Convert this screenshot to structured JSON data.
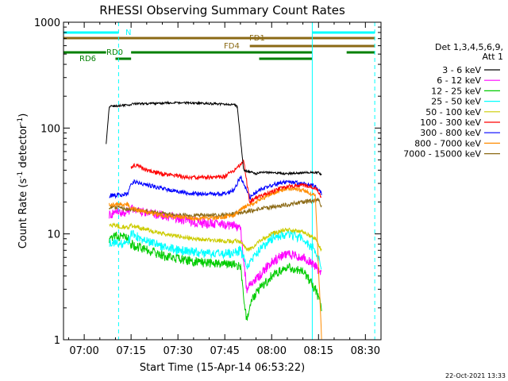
{
  "chart_data": {
    "type": "line",
    "title": "RHESSI Observing Summary Count Rates",
    "xlabel": "Start Time (15-Apr-14 06:53:22)",
    "ylabel_main": "Count Rate (s",
    "ylabel_sup1": "-1",
    "ylabel_mid": " detector",
    "ylabel_sup2": "-1",
    "ylabel_end": ")",
    "yscale": "log",
    "ylim": [
      1,
      1000
    ],
    "xlim": [
      "06:53:22",
      "08:35:00"
    ],
    "xticks": [
      "07:00",
      "07:15",
      "07:30",
      "07:45",
      "08:00",
      "08:15",
      "08:30"
    ],
    "yticks": [
      "1",
      "10",
      "100",
      "1000"
    ],
    "legend_header": [
      "Det 1,3,4,5,6,9,",
      "Att 1"
    ],
    "legend_position": "right",
    "series": [
      {
        "name": "3 - 6 keV",
        "color": "#000000",
        "x": [
          "07:07",
          "07:08",
          "07:10",
          "07:14",
          "07:15",
          "07:16",
          "07:20",
          "07:25",
          "07:30",
          "07:35",
          "07:40",
          "07:45",
          "07:48",
          "07:49",
          "07:51",
          "07:54",
          "07:55",
          "07:56",
          "08:00",
          "08:05",
          "08:10",
          "08:15",
          "08:16"
        ],
        "y": [
          70,
          160,
          162,
          165,
          168,
          170,
          170,
          172,
          173,
          172,
          170,
          168,
          166,
          160,
          40,
          38,
          37,
          38,
          38,
          37,
          38,
          38,
          36
        ]
      },
      {
        "name": "6 - 12 keV",
        "color": "#ff00ff",
        "x": [
          "07:08",
          "07:10",
          "07:14",
          "07:15",
          "07:20",
          "07:25",
          "07:30",
          "07:35",
          "07:40",
          "07:45",
          "07:48",
          "07:50",
          "07:52",
          "07:54",
          "07:56",
          "08:00",
          "08:05",
          "08:10",
          "08:14",
          "08:16"
        ],
        "y": [
          15,
          16,
          16,
          17,
          16,
          15,
          14,
          13,
          12.5,
          12,
          12,
          11,
          3,
          3.5,
          4,
          5.5,
          6.5,
          6,
          5,
          4
        ]
      },
      {
        "name": "12 - 25 keV",
        "color": "#00cc00",
        "x": [
          "07:08",
          "07:10",
          "07:14",
          "07:15",
          "07:20",
          "07:25",
          "07:30",
          "07:35",
          "07:40",
          "07:45",
          "07:48",
          "07:50",
          "07:52",
          "07:54",
          "07:56",
          "08:00",
          "08:05",
          "08:10",
          "08:14",
          "08:16"
        ],
        "y": [
          9,
          9.5,
          9,
          8,
          7,
          6.2,
          5.8,
          5.5,
          5.3,
          5.2,
          5.2,
          5,
          1.5,
          2.5,
          3,
          4,
          4.8,
          4.5,
          3,
          2
        ]
      },
      {
        "name": "25 - 50 keV",
        "color": "#00ffff",
        "x": [
          "07:08",
          "07:10",
          "07:14",
          "07:15",
          "07:20",
          "07:25",
          "07:30",
          "07:35",
          "07:40",
          "07:45",
          "07:48",
          "07:50",
          "07:52",
          "07:54",
          "07:56",
          "08:00",
          "08:05",
          "08:10",
          "08:14",
          "08:16"
        ],
        "y": [
          8,
          8.5,
          8,
          10,
          8.5,
          7.5,
          7,
          6.8,
          6.5,
          6.5,
          6.6,
          7,
          5,
          6,
          7,
          9,
          10,
          9,
          7,
          5
        ]
      },
      {
        "name": "50 - 100 keV",
        "color": "#cccc00",
        "x": [
          "07:08",
          "07:10",
          "07:14",
          "07:15",
          "07:20",
          "07:25",
          "07:30",
          "07:35",
          "07:40",
          "07:45",
          "07:48",
          "07:50",
          "07:52",
          "07:54",
          "07:56",
          "08:00",
          "08:05",
          "08:10",
          "08:14",
          "08:16"
        ],
        "y": [
          12,
          12,
          11.5,
          12,
          11,
          10,
          9.5,
          9,
          8.8,
          8.5,
          8.5,
          8.5,
          7,
          7.5,
          8.5,
          10,
          11,
          10.5,
          9,
          7
        ]
      },
      {
        "name": "100 - 300 keV",
        "color": "#ff0000",
        "x": [
          "07:15",
          "07:16",
          "07:20",
          "07:25",
          "07:30",
          "07:35",
          "07:40",
          "07:45",
          "07:48",
          "07:50",
          "07:51",
          "07:53",
          "07:55",
          "08:00",
          "08:05",
          "08:10",
          "08:14",
          "08:16"
        ],
        "y": [
          42,
          45,
          40,
          37,
          35,
          34,
          34,
          35,
          40,
          45,
          50,
          20,
          22,
          25,
          28,
          29,
          27,
          22
        ]
      },
      {
        "name": "300 - 800 keV",
        "color": "#0000ff",
        "x": [
          "07:08",
          "07:10",
          "07:14",
          "07:15",
          "07:16",
          "07:20",
          "07:25",
          "07:30",
          "07:35",
          "07:40",
          "07:45",
          "07:48",
          "07:50",
          "07:53",
          "07:55",
          "08:00",
          "08:05",
          "08:10",
          "08:14",
          "08:16"
        ],
        "y": [
          23,
          23,
          24,
          30,
          31,
          29,
          27,
          25,
          24,
          24,
          24,
          26,
          35,
          22,
          25,
          29,
          31,
          30,
          28,
          24
        ]
      },
      {
        "name": "800 - 7000 keV",
        "color": "#ff8c00",
        "x": [
          "07:08",
          "07:10",
          "07:14",
          "07:15",
          "07:20",
          "07:25",
          "07:30",
          "07:35",
          "07:40",
          "07:45",
          "07:48",
          "07:50",
          "07:53",
          "07:55",
          "08:00",
          "08:05",
          "08:10",
          "08:14",
          "08:16"
        ],
        "y": [
          19,
          19,
          19,
          17.5,
          16,
          15,
          14.5,
          14,
          14,
          14.5,
          15,
          17,
          19,
          20,
          24,
          27,
          26,
          23,
          1
        ]
      },
      {
        "name": "7000 - 15000 keV",
        "color": "#8b6914",
        "x": [
          "07:08",
          "07:15",
          "07:30",
          "07:45",
          "08:00",
          "08:15",
          "08:16"
        ],
        "y": [
          18,
          17,
          15,
          15,
          18,
          21,
          18
        ]
      }
    ],
    "annotations": {
      "bars": [
        {
          "label": "N",
          "color": "#00ffff",
          "segments": [
            [
              "06:53:22",
              "07:11"
            ],
            [
              "08:13",
              "08:33"
            ]
          ]
        },
        {
          "label": "FD1",
          "color": "#8b6914",
          "segments": [
            [
              "06:53:22",
              "08:33"
            ]
          ]
        },
        {
          "label": "FD4",
          "color": "#8b6914",
          "segments": [
            [
              "07:53",
              "08:33"
            ]
          ]
        },
        {
          "label": "RD0",
          "color": "#008000",
          "segments": [
            [
              "06:53:22",
              "07:07"
            ],
            [
              "07:15",
              "08:13"
            ],
            [
              "08:24",
              "08:33"
            ]
          ]
        },
        {
          "label": "RD6",
          "color": "#008000",
          "segments": [
            [
              "07:10",
              "07:15"
            ],
            [
              "07:56",
              "08:13"
            ]
          ]
        }
      ],
      "vlines_solid": [
        "06:53:22",
        "08:13"
      ],
      "vlines_dashed": [
        "07:11",
        "08:33"
      ],
      "date_stamp": "22-Oct-2021 13:33"
    }
  }
}
